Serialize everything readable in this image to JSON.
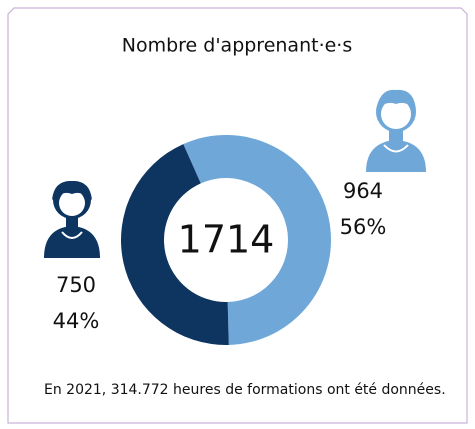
{
  "chart_data": {
    "type": "donut",
    "title": "Nombre d'apprenant·e·s",
    "total": 1714,
    "values": [
      964,
      750
    ],
    "percent_labels": [
      "56%",
      "44%"
    ],
    "colors": [
      "#6fa8d8",
      "#0d3560"
    ],
    "footnote": "En 2021, 314.772 heures de formations ont été données."
  }
}
